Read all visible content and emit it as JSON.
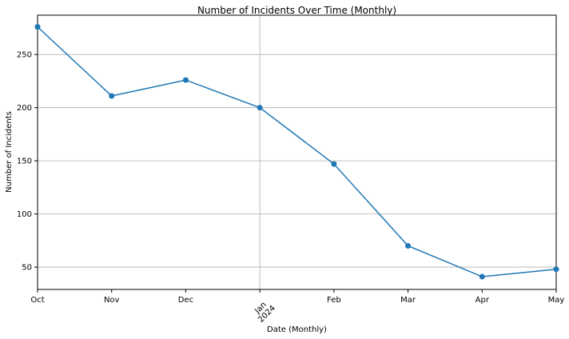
{
  "chart_data": {
    "type": "line",
    "title": "Number of Incidents Over Time (Monthly)",
    "xlabel": "Date (Monthly)",
    "ylabel": "Number of Incidents",
    "categories": [
      "Oct",
      "Nov",
      "Dec",
      "Jan",
      "Feb",
      "Mar",
      "Apr",
      "May"
    ],
    "x_tick_labels": [
      {
        "label": "Oct",
        "sub": ""
      },
      {
        "label": "Nov",
        "sub": ""
      },
      {
        "label": "Dec",
        "sub": ""
      },
      {
        "label": "Jan",
        "sub": "2024"
      },
      {
        "label": "Feb",
        "sub": ""
      },
      {
        "label": "Mar",
        "sub": ""
      },
      {
        "label": "Apr",
        "sub": ""
      },
      {
        "label": "May",
        "sub": ""
      }
    ],
    "series": [
      {
        "values": [
          276,
          211,
          226,
          200,
          147,
          70,
          41,
          48
        ],
        "color": "#1f77b4"
      }
    ],
    "y_ticks": [
      50,
      100,
      150,
      200,
      250
    ],
    "ylim": [
      29,
      287
    ],
    "grid": true,
    "grid_x_major": [
      "Jan"
    ],
    "marker": "circle"
  }
}
